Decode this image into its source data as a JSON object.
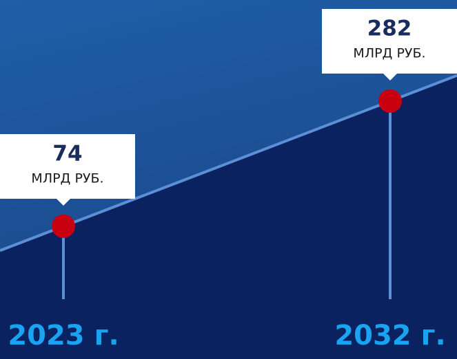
{
  "chart_data": {
    "type": "line",
    "categories": [
      "2023 г.",
      "2032 г."
    ],
    "values": [
      74,
      282
    ],
    "unit": "МЛРД РУБ.",
    "ylim": [
      0,
      400
    ],
    "color": "#5b8fd6",
    "point_color": "#c8000f",
    "label_color": "#1aa3f0"
  }
}
